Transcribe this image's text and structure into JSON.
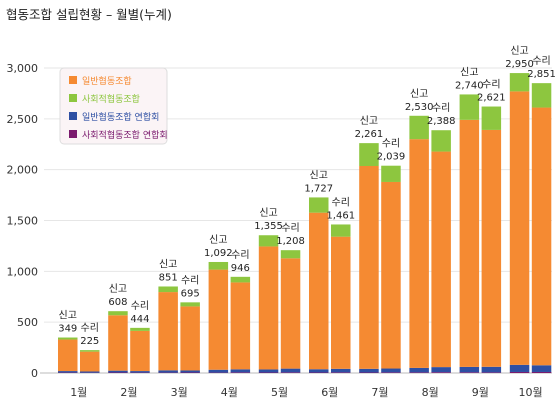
{
  "title": "협동조합 설립현황 – 월별(누계)",
  "chart_data": {
    "type": "bar",
    "stacked": true,
    "grouped": true,
    "categories": [
      "1월",
      "2월",
      "3월",
      "4월",
      "5월",
      "6월",
      "7월",
      "8월",
      "9월",
      "10월"
    ],
    "groups": [
      {
        "name": "신고",
        "totals": [
          349,
          608,
          851,
          1092,
          1355,
          1727,
          2261,
          2530,
          2740,
          2950
        ]
      },
      {
        "name": "수리",
        "totals": [
          225,
          444,
          695,
          946,
          1208,
          1461,
          2039,
          2388,
          2621,
          2851
        ]
      }
    ],
    "series": [
      {
        "name": "일반협동조합",
        "color": "#f58a32",
        "values_신고": [
          310,
          545,
          770,
          985,
          1210,
          1540,
          1995,
          2250,
          2430,
          2690
        ],
        "values_수리": [
          195,
          395,
          630,
          855,
          1085,
          1300,
          1835,
          2120,
          2330,
          2535
        ]
      },
      {
        "name": "사회적협동조합",
        "color": "#8dc63f",
        "values_신고": [
          20,
          40,
          55,
          75,
          110,
          150,
          225,
          230,
          250,
          180
        ],
        "values_수리": [
          15,
          30,
          40,
          55,
          80,
          120,
          160,
          210,
          230,
          240
        ]
      },
      {
        "name": "일반협동조합 연합회",
        "color": "#2e4fa3",
        "values_신고": [
          15,
          18,
          22,
          28,
          30,
          32,
          36,
          44,
          53,
          70
        ],
        "values_수리": [
          12,
          15,
          20,
          30,
          37,
          35,
          38,
          50,
          55,
          66
        ]
      },
      {
        "name": "사회적협동조합 연합회",
        "color": "#7b1a6e",
        "values_신고": [
          4,
          5,
          4,
          4,
          5,
          5,
          5,
          6,
          7,
          10
        ],
        "values_수리": [
          3,
          4,
          5,
          6,
          6,
          6,
          6,
          8,
          6,
          10
        ]
      }
    ],
    "ylim": [
      0,
      3000
    ],
    "yticks": [
      "0",
      "500",
      "1,000",
      "1,500",
      "2,000",
      "2,500",
      "3,000"
    ],
    "bar_labels_신고": [
      "349",
      "608",
      "851",
      "1,092",
      "1,355",
      "1,727",
      "2,261",
      "2,530",
      "2,740",
      "2,950"
    ],
    "bar_labels_수리": [
      "225",
      "444",
      "695",
      "946",
      "1,208",
      "1,461",
      "2,039",
      "2,388",
      "2,621",
      "2,851"
    ],
    "grid": true,
    "legend_position": "top-left"
  }
}
